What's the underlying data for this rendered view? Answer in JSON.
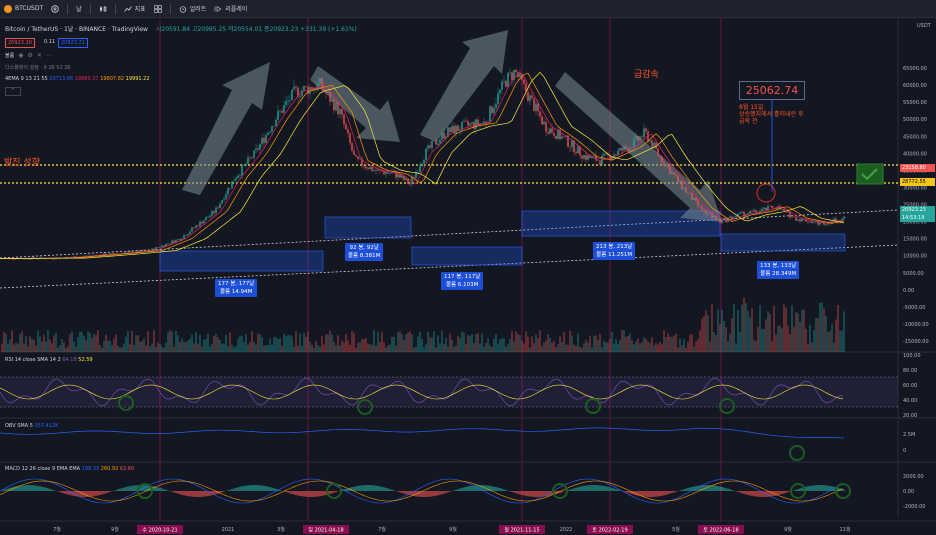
{
  "topbar": {
    "symbol": "BTCUSDT",
    "interval": "날",
    "indicators": "지표",
    "alert": "얼러트",
    "replay": "리플레이"
  },
  "legend": {
    "title": "Bitcoin / TetherUS · 1날 · BINANCE · TradingView",
    "ohlc": "시20591.84 고20985.25 저20554.01 종20923.23 +331.39 (+1.61%)",
    "bid": "20923.10",
    "spread": "0.11",
    "ask": "20923.21",
    "volume_label": "볼륨",
    "hint": "디스플레이 설정 · 9 26 52 26",
    "ema_label": "4EMA 9 13 21 55",
    "ema_v1": "20713.86",
    "ema_v2": "19889.37",
    "ema_v3": "19807.82",
    "ema_v4": "19991.22"
  },
  "colors": {
    "up": "#26a69a",
    "down": "#ef5350",
    "accent": "#2962ff",
    "annot": "#ff5722"
  },
  "axis": {
    "currency": "USDT",
    "price_ticks": [
      "65000.00",
      "60000.00",
      "55000.00",
      "50000.00",
      "45000.00",
      "40000.00",
      "35000.00",
      "30000.00",
      "25000.00",
      "20000.00",
      "15000.00",
      "10000.00",
      "5000.00",
      "0.00",
      "-5000.00",
      "-10000.00",
      "-15000.00"
    ],
    "price_flag_1": "23158.80",
    "price_flag_2": "28772.55",
    "price_flag_3": "20923.23",
    "price_flag_time": "14:53:19",
    "rsi_ticks": [
      "100.00",
      "80.00",
      "60.00",
      "40.00",
      "20.00"
    ],
    "obv_ticks": [
      "2.5M",
      "0"
    ],
    "macd_ticks": [
      "2000.00",
      "0.00",
      "-2000.00"
    ],
    "time_ticks": [
      "7월",
      "9월",
      "2021",
      "3월",
      "7월",
      "9월",
      "2022",
      "5월",
      "9월",
      "11월"
    ],
    "time_flags": [
      "수 2020-10-21",
      "일 2021-04-18",
      "월 2021-11-15",
      "토 2022-02-19",
      "토 2022-06-18"
    ]
  },
  "annotations": {
    "bullish": "발진 성향",
    "crash": "급감속",
    "big_price": "25062.74",
    "note_line1": "8월 15일",
    "note_line2": "상승했지에서 흘러내린 후",
    "note_line3": "급락 전"
  },
  "boxes": [
    {
      "line1": "177 봉, 177날",
      "line2": "볼륨 14.94M"
    },
    {
      "line1": "92 봉, 92날",
      "line2": "볼륨 8.381M"
    },
    {
      "line1": "117 봉, 117날",
      "line2": "볼륨 6.103M"
    },
    {
      "line1": "213 봉, 213날",
      "line2": "볼륨 11.251M"
    },
    {
      "line1": "133 봉, 133날",
      "line2": "볼륨 28.349M"
    }
  ],
  "rsi": {
    "label": "RSI 14 close SMA 14 2",
    "v1": "64.18",
    "v2": "52.59"
  },
  "obv": {
    "label": "OBV SMA 5",
    "v1": "357.412K"
  },
  "macd": {
    "label": "MACD 12 26 close 9 EMA EMA",
    "v1": "198.33",
    "v2": "260.92",
    "v3": "62.60"
  }
}
